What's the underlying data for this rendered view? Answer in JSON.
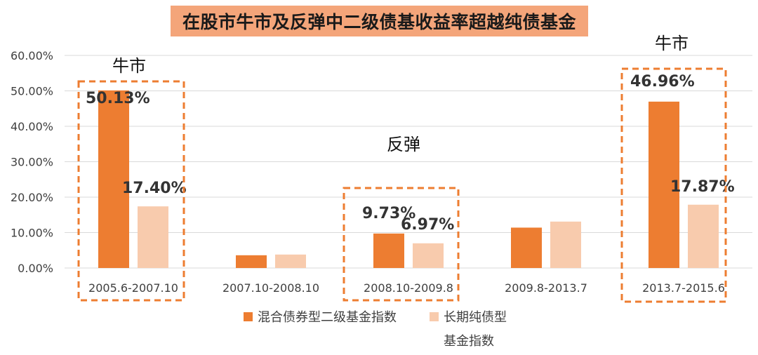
{
  "title": "在股市牛市及反弹中二级债基收益率超越纯债基金",
  "chart_data": {
    "type": "bar",
    "categories": [
      "2005.6-2007.10",
      "2007.10-2008.10",
      "2008.10-2009.8",
      "2009.8-2013.7",
      "2013.7-2015.6"
    ],
    "series": [
      {
        "name": "混合债券型二级基金指数",
        "values": [
          50.13,
          3.6,
          9.73,
          11.4,
          46.96
        ],
        "color": "#ed7d31",
        "labels": [
          "50.13%",
          null,
          "9.73%",
          null,
          "46.96%"
        ]
      },
      {
        "name": "长期纯债型基金指数",
        "values": [
          17.4,
          3.8,
          6.97,
          13.1,
          17.87
        ],
        "color": "#f8cbad",
        "labels": [
          "17.40%",
          null,
          "6.97%",
          null,
          "17.87%"
        ]
      }
    ],
    "ylim": [
      0,
      60
    ],
    "yticks": [
      "0.00%",
      "10.00%",
      "20.00%",
      "30.00%",
      "40.00%",
      "50.00%",
      "60.00%"
    ],
    "legend_position": "bottom",
    "legend_labels": [
      [
        "混合债券型二级基金指数"
      ],
      [
        "长期纯债型",
        "基金指数"
      ]
    ],
    "highlights": [
      {
        "category_index": 0,
        "note": "牛市"
      },
      {
        "category_index": 2,
        "note": "反弹"
      },
      {
        "category_index": 4,
        "note": "牛市"
      }
    ],
    "highlight_color": "#ed7d31"
  }
}
